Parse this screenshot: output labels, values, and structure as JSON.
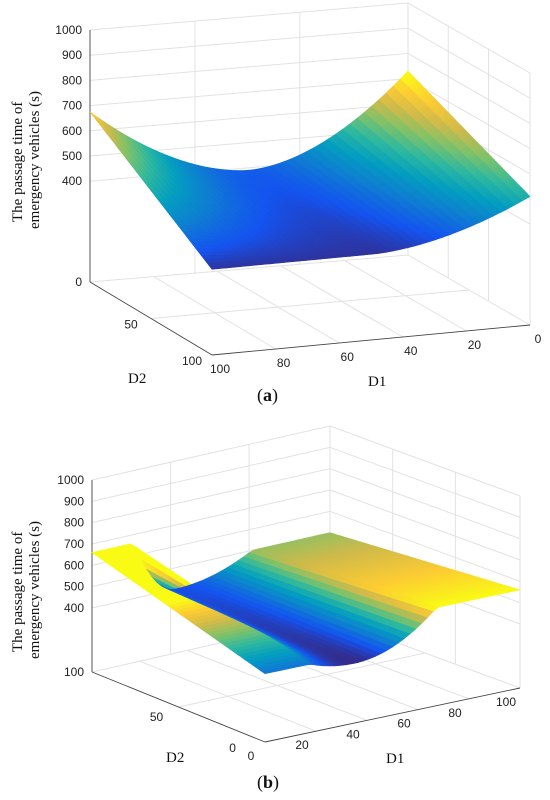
{
  "chart_data": [
    {
      "type": "surface3d",
      "panel_label": "a",
      "zlabel": "The passage time of emergency vehicles (s)",
      "xlabel": "D1",
      "ylabel": "D2",
      "x_ticks": [
        "100",
        "80",
        "60",
        "40",
        "20",
        "0"
      ],
      "y_ticks": [
        "50",
        "100"
      ],
      "z_ticks": [
        "0",
        "400",
        "500",
        "600",
        "700",
        "800",
        "900",
        "1000"
      ],
      "zlim": [
        0,
        1000
      ],
      "colormap": "parula",
      "surface_corners": {
        "D1_0_D2_0": 720,
        "D1_100_D2_0": 665,
        "D1_0_D2_100": 510,
        "D1_100_D2_100": 340
      },
      "grid": true
    },
    {
      "type": "surface3d",
      "panel_label": "b",
      "zlabel": "The passage time of emergency vehicles (s)",
      "xlabel": "D1",
      "ylabel": "D2",
      "x_ticks": [
        "0",
        "20",
        "40",
        "60",
        "80",
        "100"
      ],
      "y_ticks": [
        "0",
        "50"
      ],
      "z_ticks": [
        "100",
        "400",
        "500",
        "600",
        "700",
        "800",
        "900",
        "1000"
      ],
      "zlim": [
        100,
        1000
      ],
      "colormap": "parula",
      "surface_corners": {
        "D1_0_D2_0": 420,
        "D1_100_D2_0": 560,
        "D1_0_D2_100": 660,
        "D1_100_D2_100": 500
      },
      "grid": true
    }
  ],
  "labels": {
    "a": "a",
    "b": "b"
  }
}
